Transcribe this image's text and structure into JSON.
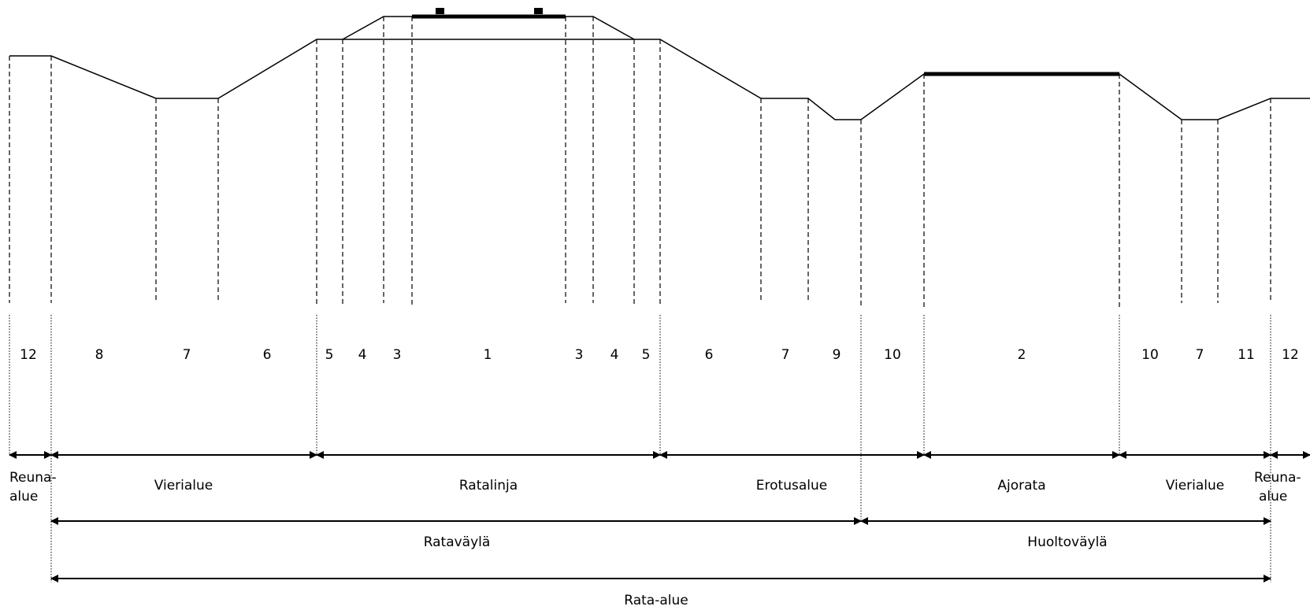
{
  "numbers": [
    "12",
    "8",
    "7",
    "6",
    "5",
    "4",
    "3",
    "1",
    "3",
    "4",
    "5",
    "6",
    "7",
    "9",
    "10",
    "2",
    "10",
    "7",
    "11",
    "12"
  ],
  "zones": {
    "reuna_left_1": "Reuna-",
    "reuna_left_2": "alue",
    "vierialue_left": "Vierialue",
    "ratalinja": "Ratalinja",
    "erotusalue": "Erotusalue",
    "ajorata": "Ajorata",
    "vierialue_right": "Vierialue",
    "reuna_right_1": "Reuna-",
    "reuna_right_2": "alue",
    "ratavayla": "Rataväylä",
    "huoltovayla": "Huoltoväylä",
    "rata_alue": "Rata-alue"
  }
}
